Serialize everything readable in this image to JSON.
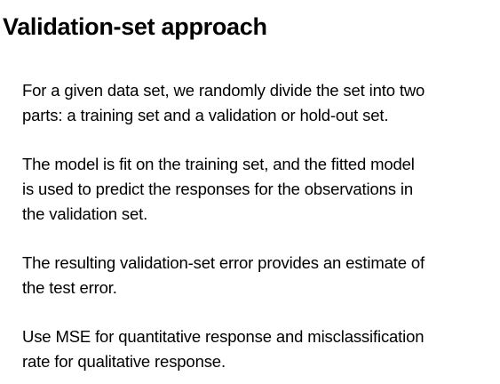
{
  "slide": {
    "title": "Validation-set approach",
    "paragraphs": [
      {
        "lines": [
          "For a given data set, we randomly divide the set into two",
          "parts: a training set and a validation or hold-out set."
        ]
      },
      {
        "lines": [
          "The model is fit on the training set, and the fitted model",
          "is used to predict the responses for the observations in",
          "the validation set."
        ]
      },
      {
        "lines": [
          "The resulting validation-set error provides an estimate of",
          "the test error."
        ]
      },
      {
        "lines": [
          "Use MSE for quantitative response and misclassification",
          "rate for qualitative response."
        ]
      }
    ]
  }
}
